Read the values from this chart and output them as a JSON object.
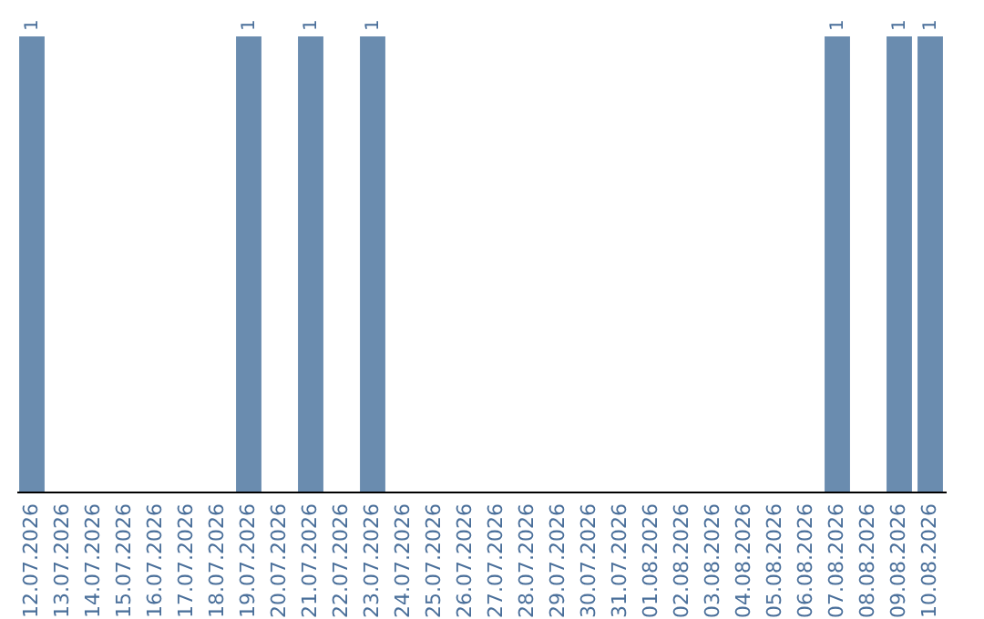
{
  "chart_data": {
    "type": "bar",
    "categories": [
      "12.07.2026",
      "13.07.2026",
      "14.07.2026",
      "15.07.2026",
      "16.07.2026",
      "17.07.2026",
      "18.07.2026",
      "19.07.2026",
      "20.07.2026",
      "21.07.2026",
      "22.07.2026",
      "23.07.2026",
      "24.07.2026",
      "25.07.2026",
      "26.07.2026",
      "27.07.2026",
      "28.07.2026",
      "29.07.2026",
      "30.07.2026",
      "31.07.2026",
      "01.08.2026",
      "02.08.2026",
      "03.08.2026",
      "04.08.2026",
      "05.08.2026",
      "06.08.2026",
      "07.08.2026",
      "08.08.2026",
      "09.08.2026",
      "10.08.2026"
    ],
    "values": [
      1,
      0,
      0,
      0,
      0,
      0,
      0,
      1,
      0,
      1,
      0,
      1,
      0,
      0,
      0,
      0,
      0,
      0,
      0,
      0,
      0,
      0,
      0,
      0,
      0,
      0,
      1,
      0,
      1,
      1
    ],
    "value_labels": [
      "1",
      null,
      null,
      null,
      null,
      null,
      null,
      "1",
      null,
      "1",
      null,
      "1",
      null,
      null,
      null,
      null,
      null,
      null,
      null,
      null,
      null,
      null,
      null,
      null,
      null,
      null,
      "1",
      null,
      "1",
      "1"
    ],
    "color": "#6a8caf",
    "grid": false
  }
}
